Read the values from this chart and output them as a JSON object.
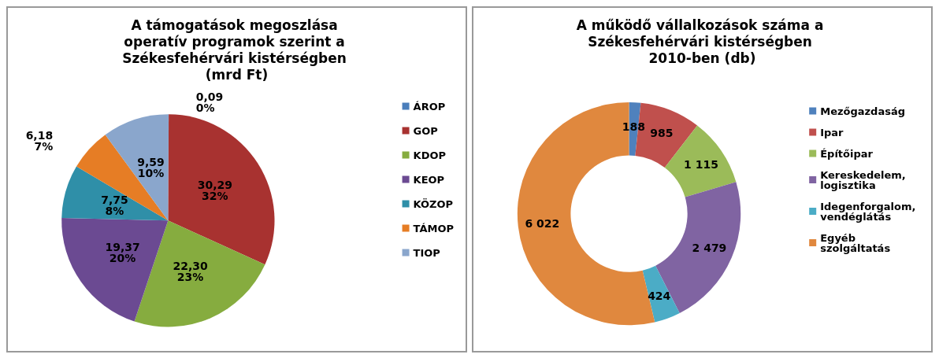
{
  "chart_data": [
    {
      "type": "pie",
      "title": "A támogatások megoszlása operatív programok szerint a Székesfehérvári kistérségben (mrd Ft)",
      "categories": [
        "ÁROP",
        "GOP",
        "KDOP",
        "KEOP",
        "KÖZOP",
        "TÁMOP",
        "TIOP"
      ],
      "values": [
        0.09,
        30.29,
        22.3,
        19.37,
        7.75,
        6.18,
        9.59
      ],
      "colors": [
        "#4a7ebb",
        "#a83230",
        "#86ac3f",
        "#6b4a92",
        "#2f8fa8",
        "#e67d25",
        "#8aa6cc"
      ],
      "value_labels": [
        "0,09\n0%",
        "30,29\n32%",
        "22,30\n23%",
        "19,37\n20%",
        "7,75\n8%",
        "6,18\n7%",
        "9,59\n10%"
      ],
      "legend": "right"
    },
    {
      "type": "donut",
      "title": "A működő vállalkozások száma a Székesfehérvári kistérségben 2010-ben (db)",
      "categories": [
        "Mezőgazdaság",
        "Ipar",
        "Építőipar",
        "Kereskedelem, logisztika",
        "Idegenforgalom, vendéglátás",
        "Egyéb szolgáltatás"
      ],
      "values": [
        188,
        985,
        1115,
        2479,
        424,
        6022
      ],
      "colors": [
        "#4f81bd",
        "#c0504d",
        "#9bbb59",
        "#8064a2",
        "#4bacc6",
        "#e0883e"
      ],
      "value_labels": [
        "188",
        "985",
        "1 115",
        "2 479",
        "424",
        "6 022"
      ],
      "legend": "right"
    }
  ]
}
